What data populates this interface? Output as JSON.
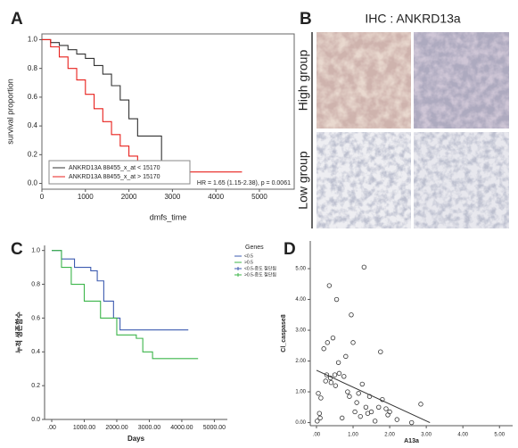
{
  "panel_labels": [
    "A",
    "B",
    "C",
    "D"
  ],
  "ihc": {
    "title": "IHC : ANKRD13a",
    "rows": [
      "High group",
      "Low group"
    ]
  },
  "chart_data": [
    {
      "type": "line",
      "step": true,
      "xlabel": "dmfs_time",
      "ylabel": "survival proportion",
      "xlim": [
        0,
        5800
      ],
      "ylim": [
        -0.04,
        1.04
      ],
      "xticks": [
        0,
        1000,
        2000,
        3000,
        4000,
        5000
      ],
      "yticks": [
        {
          "value": 0,
          "label": "0.0"
        },
        {
          "value": 0.2,
          "label": "0.2"
        },
        {
          "value": 0.4,
          "label": "0.4"
        },
        {
          "value": 0.6,
          "label": "0.6"
        },
        {
          "value": 0.8,
          "label": "0.8"
        },
        {
          "value": 1,
          "label": "1.0"
        }
      ],
      "legend": "bottom-left",
      "annotation": "HR = 1.65 (1.15-2.38), p = 0.0061",
      "series": [
        {
          "name": "ANKRD13A 88455_x_at < 15170",
          "color": "#333333",
          "x": [
            0,
            200,
            400,
            600,
            800,
            1000,
            1200,
            1400,
            1600,
            1800,
            2000,
            2200,
            2700,
            2750,
            3000
          ],
          "values": [
            1.0,
            0.98,
            0.96,
            0.93,
            0.9,
            0.87,
            0.82,
            0.76,
            0.68,
            0.58,
            0.45,
            0.33,
            0.33,
            0.1,
            0.1
          ]
        },
        {
          "name": "ANKRD13A 88455_x_at > 15170",
          "color": "#e8201c",
          "x": [
            0,
            200,
            400,
            600,
            800,
            1000,
            1200,
            1400,
            1600,
            1800,
            2000,
            2200,
            2600,
            3000,
            4600
          ],
          "values": [
            1.0,
            0.95,
            0.88,
            0.8,
            0.72,
            0.62,
            0.52,
            0.43,
            0.34,
            0.26,
            0.19,
            0.13,
            0.08,
            0.08,
            0.08
          ]
        }
      ]
    },
    {
      "type": "line",
      "step": true,
      "xlabel": "Days",
      "ylabel": "누적 생존함수",
      "xlim": [
        -220,
        5400
      ],
      "ylim": [
        0,
        1.03
      ],
      "xticks": [
        {
          "value": 0,
          "label": ".00"
        },
        {
          "value": 1000,
          "label": "1000.00"
        },
        {
          "value": 2000,
          "label": "2000.00"
        },
        {
          "value": 3000,
          "label": "3000.00"
        },
        {
          "value": 4000,
          "label": "4000.00"
        },
        {
          "value": 5000,
          "label": "5000.00"
        }
      ],
      "yticks": [
        {
          "value": 0,
          "label": "0.0"
        },
        {
          "value": 0.2,
          "label": "0.2"
        },
        {
          "value": 0.4,
          "label": "0.4"
        },
        {
          "value": 0.6,
          "label": "0.6"
        },
        {
          "value": 0.8,
          "label": "0.8"
        },
        {
          "value": 1,
          "label": "1.0"
        }
      ],
      "legend_title": "Genes",
      "series": [
        {
          "name": "<0.5",
          "color": "#3d5bb0",
          "x": [
            0,
            300,
            700,
            1200,
            1400,
            1600,
            1900,
            2100,
            4200
          ],
          "values": [
            1.0,
            0.95,
            0.9,
            0.88,
            0.82,
            0.7,
            0.6,
            0.53,
            0.53
          ]
        },
        {
          "name": ">0.5",
          "color": "#3cb54a",
          "x": [
            0,
            300,
            600,
            1000,
            1500,
            2000,
            2600,
            2800,
            3100,
            4500
          ],
          "values": [
            1.0,
            0.9,
            0.8,
            0.7,
            0.6,
            0.5,
            0.48,
            0.4,
            0.36,
            0.36
          ]
        }
      ],
      "censored_legend": [
        {
          "name": "<0.5-중도 절단됨",
          "color": "#3d5bb0"
        },
        {
          "name": ">0.5-중도 절단됨",
          "color": "#3cb54a"
        }
      ]
    },
    {
      "type": "scatter",
      "xlabel": "A13a",
      "ylabel": "Cl_caspase8",
      "xlim": [
        -0.17,
        5.36
      ],
      "ylim": [
        -0.1,
        5.9
      ],
      "xticks": [
        {
          "value": 0,
          "label": ".00"
        },
        {
          "value": 1,
          "label": "1.00"
        },
        {
          "value": 2,
          "label": "2.00"
        },
        {
          "value": 3,
          "label": "3.00"
        },
        {
          "value": 4,
          "label": "4.00"
        },
        {
          "value": 5,
          "label": "5.00"
        }
      ],
      "yticks": [
        {
          "value": 0,
          "label": "0.00"
        },
        {
          "value": 1,
          "label": "1.00"
        },
        {
          "value": 2,
          "label": "2.00"
        },
        {
          "value": 3,
          "label": "3.00"
        },
        {
          "value": 4,
          "label": "4.00"
        },
        {
          "value": 5,
          "label": "5.00"
        }
      ],
      "series": [
        {
          "color": "#333333",
          "x": [
            0.02,
            0.05,
            0.08,
            0.1,
            0.12,
            0.2,
            0.25,
            0.28,
            0.3,
            0.35,
            0.38,
            0.4,
            0.45,
            0.5,
            0.52,
            0.55,
            0.6,
            0.62,
            0.7,
            0.75,
            0.8,
            0.85,
            0.9,
            0.95,
            1.0,
            1.05,
            1.1,
            1.15,
            1.2,
            1.25,
            1.3,
            1.35,
            1.4,
            1.45,
            1.5,
            1.6,
            1.7,
            1.75,
            1.8,
            1.9,
            1.95,
            2.0,
            2.2,
            2.6,
            2.85
          ],
          "values": [
            0.05,
            0.95,
            0.3,
            0.15,
            0.8,
            2.4,
            1.35,
            1.55,
            2.6,
            4.45,
            1.45,
            1.3,
            2.75,
            1.55,
            1.2,
            4.0,
            1.95,
            1.6,
            0.15,
            1.5,
            2.15,
            1.0,
            0.85,
            3.5,
            2.6,
            0.35,
            0.65,
            0.95,
            0.2,
            1.25,
            5.05,
            0.5,
            0.3,
            0.85,
            0.35,
            0.05,
            0.5,
            2.3,
            0.75,
            0.45,
            0.25,
            0.35,
            0.1,
            0.0,
            0.6
          ]
        }
      ],
      "trend": {
        "color": "#333333",
        "x": [
          0,
          3.1
        ],
        "values": [
          1.7,
          0
        ]
      }
    }
  ]
}
